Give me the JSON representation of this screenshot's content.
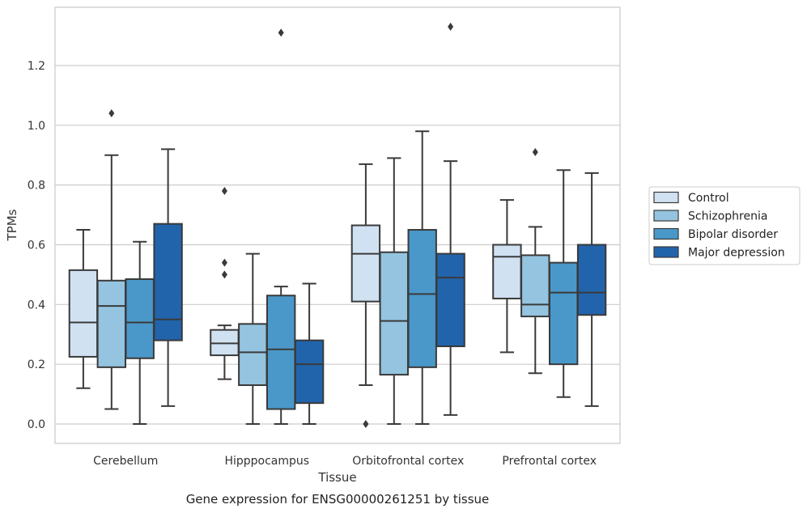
{
  "caption": "Gene expression for ENSG00000261251 by tissue",
  "chart_data": {
    "type": "box",
    "xlabel": "Tissue",
    "ylabel": "TPMs",
    "ylim": [
      -0.065,
      1.395
    ],
    "yticks": [
      0.0,
      0.2,
      0.4,
      0.6,
      0.8,
      1.0,
      1.2
    ],
    "grid": true,
    "legend_position": "right",
    "categories": [
      "Cerebellum",
      "Hipppocampus",
      "Orbitofrontal cortex",
      "Prefrontal cortex"
    ],
    "series": [
      {
        "name": "Control",
        "color": "#d0e1f2",
        "boxes": [
          {
            "whisker_low": 0.12,
            "q1": 0.225,
            "median": 0.34,
            "q3": 0.515,
            "whisker_high": 0.65,
            "outliers": []
          },
          {
            "whisker_low": 0.15,
            "q1": 0.23,
            "median": 0.27,
            "q3": 0.315,
            "whisker_high": 0.33,
            "outliers": [
              0.78,
              0.54,
              0.5
            ]
          },
          {
            "whisker_low": 0.13,
            "q1": 0.41,
            "median": 0.57,
            "q3": 0.665,
            "whisker_high": 0.87,
            "outliers": [
              0.0
            ]
          },
          {
            "whisker_low": 0.24,
            "q1": 0.42,
            "median": 0.56,
            "q3": 0.6,
            "whisker_high": 0.75,
            "outliers": []
          }
        ]
      },
      {
        "name": "Schizophrenia",
        "color": "#94c4df",
        "boxes": [
          {
            "whisker_low": 0.05,
            "q1": 0.19,
            "median": 0.395,
            "q3": 0.48,
            "whisker_high": 0.9,
            "outliers": [
              1.04
            ]
          },
          {
            "whisker_low": 0.0,
            "q1": 0.13,
            "median": 0.24,
            "q3": 0.335,
            "whisker_high": 0.57,
            "outliers": []
          },
          {
            "whisker_low": 0.0,
            "q1": 0.165,
            "median": 0.345,
            "q3": 0.575,
            "whisker_high": 0.89,
            "outliers": []
          },
          {
            "whisker_low": 0.17,
            "q1": 0.36,
            "median": 0.4,
            "q3": 0.565,
            "whisker_high": 0.66,
            "outliers": [
              0.91
            ]
          }
        ]
      },
      {
        "name": "Bipolar disorder",
        "color": "#4a98c9",
        "boxes": [
          {
            "whisker_low": 0.0,
            "q1": 0.22,
            "median": 0.34,
            "q3": 0.485,
            "whisker_high": 0.61,
            "outliers": []
          },
          {
            "whisker_low": 0.0,
            "q1": 0.05,
            "median": 0.25,
            "q3": 0.43,
            "whisker_high": 0.46,
            "outliers": [
              1.31
            ]
          },
          {
            "whisker_low": 0.0,
            "q1": 0.19,
            "median": 0.435,
            "q3": 0.65,
            "whisker_high": 0.98,
            "outliers": []
          },
          {
            "whisker_low": 0.09,
            "q1": 0.2,
            "median": 0.44,
            "q3": 0.54,
            "whisker_high": 0.85,
            "outliers": []
          }
        ]
      },
      {
        "name": "Major depression",
        "color": "#2164ab",
        "boxes": [
          {
            "whisker_low": 0.06,
            "q1": 0.28,
            "median": 0.35,
            "q3": 0.67,
            "whisker_high": 0.92,
            "outliers": []
          },
          {
            "whisker_low": 0.0,
            "q1": 0.07,
            "median": 0.2,
            "q3": 0.28,
            "whisker_high": 0.47,
            "outliers": []
          },
          {
            "whisker_low": 0.03,
            "q1": 0.26,
            "median": 0.49,
            "q3": 0.57,
            "whisker_high": 0.88,
            "outliers": [
              1.33
            ]
          },
          {
            "whisker_low": 0.06,
            "q1": 0.365,
            "median": 0.44,
            "q3": 0.6,
            "whisker_high": 0.84,
            "outliers": []
          }
        ]
      }
    ]
  }
}
